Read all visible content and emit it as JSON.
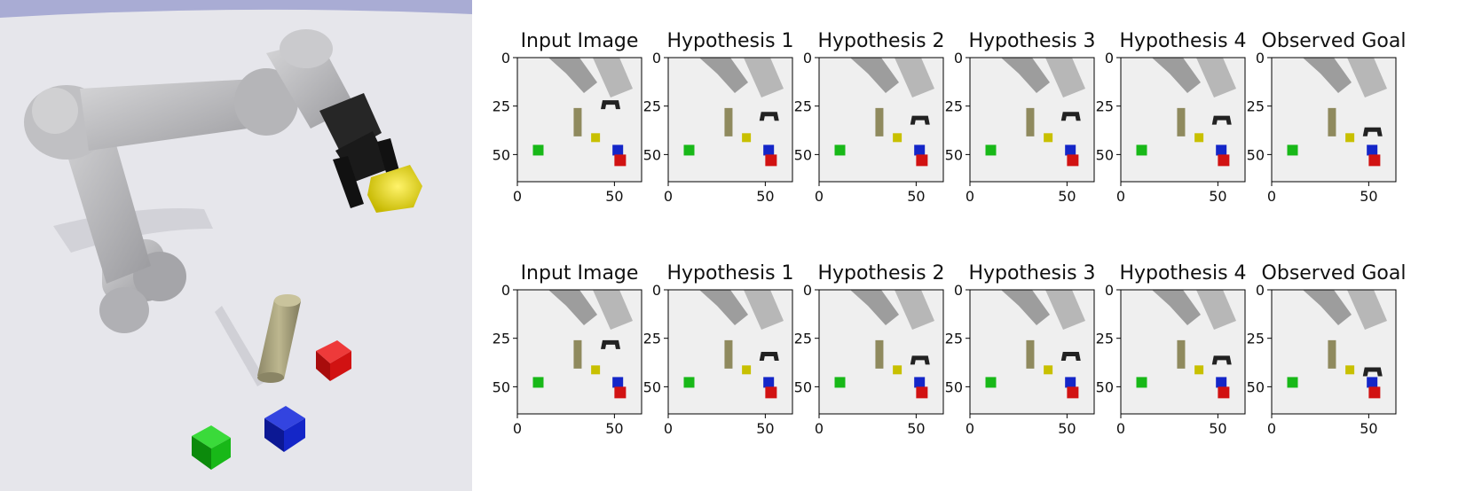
{
  "scene": {
    "objects": [
      "robot-arm",
      "gripper",
      "yellow-cube",
      "olive-cylinder",
      "red-cube",
      "blue-cube",
      "green-cube"
    ],
    "colors": {
      "floor": "#e6e6eb",
      "sky": "#a9acd4",
      "arm": "#b9b9bc",
      "gripper": "#1e1e1e",
      "yellow": "#e2d400",
      "olive": "#a8a27a",
      "red": "#d11212",
      "blue": "#1426c8",
      "green": "#18b818"
    }
  },
  "grid": {
    "rows": [
      {
        "titles": [
          "Input Image",
          "Hypothesis 1",
          "Hypothesis 2",
          "Hypothesis 3",
          "Hypothesis 4",
          "Observed Goal"
        ],
        "ytick_labels": [
          "0",
          "25",
          "50"
        ],
        "xtick_labels": [
          "0",
          "50"
        ]
      },
      {
        "titles": [
          "Input Image",
          "Hypothesis 1",
          "Hypothesis 2",
          "Hypothesis 3",
          "Hypothesis 4",
          "Observed Goal"
        ],
        "ytick_labels": [
          "0",
          "25",
          "50"
        ],
        "xtick_labels": [
          "0",
          "50"
        ]
      }
    ],
    "axis_extent": [
      0,
      64
    ],
    "ticks_x": [
      0,
      50
    ],
    "ticks_y": [
      0,
      25,
      50
    ]
  }
}
